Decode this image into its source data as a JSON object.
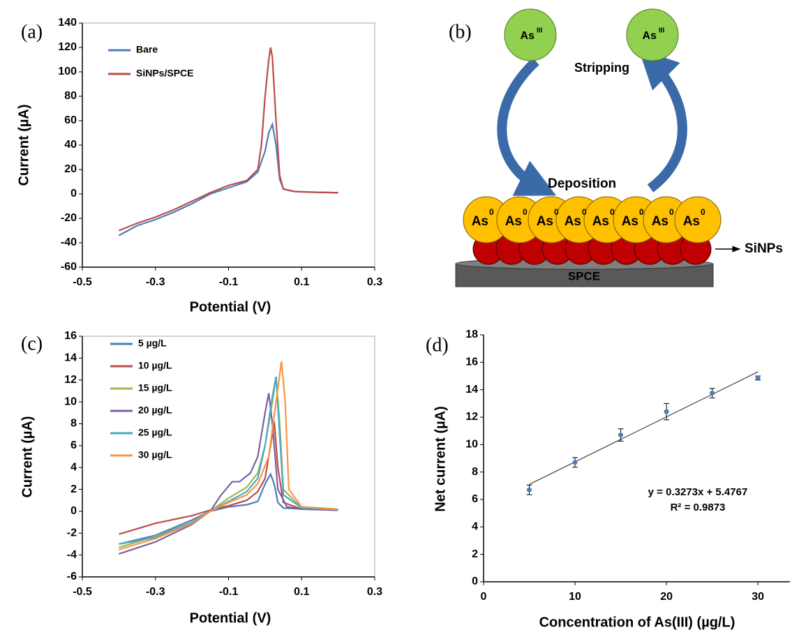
{
  "chart_data": [
    {
      "type": "line",
      "label": "(a)",
      "x_label": "Potential (V)",
      "y_label": "Current (µA)",
      "xlim": [
        -0.5,
        0.3
      ],
      "xticks": [
        -0.5,
        -0.3,
        -0.1,
        0.1,
        0.3
      ],
      "ylim": [
        -60,
        140
      ],
      "yticks": [
        -60,
        -40,
        -20,
        0,
        20,
        40,
        60,
        80,
        100,
        120,
        140
      ],
      "border": true,
      "series": [
        {
          "name": "Bare",
          "color": "#4a7ebb",
          "x": [
            -0.4,
            -0.35,
            -0.3,
            -0.25,
            -0.2,
            -0.15,
            -0.1,
            -0.05,
            -0.02,
            0,
            0.01,
            0.02,
            0.03,
            0.04,
            0.05,
            0.08,
            0.12,
            0.2
          ],
          "values": [
            -34,
            -26,
            -21,
            -15,
            -8,
            0,
            5,
            10,
            18,
            35,
            50,
            57,
            40,
            12,
            4,
            2,
            1.5,
            1
          ]
        },
        {
          "name": "SiNPs/SPCE",
          "color": "#be4b48",
          "x": [
            -0.4,
            -0.35,
            -0.3,
            -0.25,
            -0.2,
            -0.15,
            -0.1,
            -0.05,
            -0.02,
            -0.01,
            0,
            0.01,
            0.015,
            0.02,
            0.03,
            0.04,
            0.05,
            0.08,
            0.12,
            0.2
          ],
          "values": [
            -30,
            -24,
            -19,
            -13,
            -6,
            1,
            7,
            11,
            20,
            40,
            80,
            110,
            120,
            112,
            60,
            15,
            4,
            2,
            1.5,
            1
          ]
        }
      ]
    },
    {
      "type": "line",
      "label": "(c)",
      "x_label": "Potential (V)",
      "y_label": "Current (µA)",
      "xlim": [
        -0.5,
        0.3
      ],
      "xticks": [
        -0.5,
        -0.3,
        -0.1,
        0.1,
        0.3
      ],
      "ylim": [
        -6,
        16
      ],
      "yticks": [
        -6,
        -4,
        -2,
        0,
        2,
        4,
        6,
        8,
        10,
        12,
        14,
        16
      ],
      "border": true,
      "series": [
        {
          "name": "5 µg/L",
          "color": "#4a7ebb",
          "x": [
            -0.4,
            -0.3,
            -0.2,
            -0.15,
            -0.1,
            -0.05,
            -0.02,
            0,
            0.015,
            0.025,
            0.035,
            0.05,
            0.1,
            0.2
          ],
          "values": [
            -3,
            -2.2,
            -0.8,
            0,
            0.4,
            0.6,
            0.9,
            2.5,
            3.4,
            2.5,
            0.8,
            0.3,
            0.2,
            0.1
          ]
        },
        {
          "name": "10 µg/L",
          "color": "#be4b48",
          "x": [
            -0.4,
            -0.3,
            -0.2,
            -0.15,
            -0.1,
            -0.05,
            -0.02,
            0,
            0.015,
            0.025,
            0.035,
            0.05,
            0.1,
            0.2
          ],
          "values": [
            -2.1,
            -1.1,
            -0.4,
            0.1,
            0.5,
            1,
            1.8,
            3,
            6,
            8.2,
            4,
            0.8,
            0.2,
            0.15
          ]
        },
        {
          "name": "15 µg/L",
          "color": "#98b954",
          "x": [
            -0.4,
            -0.3,
            -0.2,
            -0.15,
            -0.1,
            -0.05,
            -0.02,
            0,
            0.02,
            0.03,
            0.04,
            0.05,
            0.1,
            0.2
          ],
          "values": [
            -3.3,
            -2.3,
            -1,
            0,
            1.2,
            2.2,
            3.5,
            6,
            10,
            12.3,
            8,
            2,
            0.3,
            0.15
          ]
        },
        {
          "name": "20 µg/L",
          "color": "#7d60a0",
          "x": [
            -0.4,
            -0.3,
            -0.2,
            -0.15,
            -0.12,
            -0.09,
            -0.07,
            -0.04,
            -0.02,
            0,
            0.01,
            0.02,
            0.035,
            0.06,
            0.1,
            0.2
          ],
          "values": [
            -3.9,
            -2.8,
            -1.2,
            0,
            1.5,
            2.7,
            2.7,
            3.5,
            5,
            9,
            10.8,
            8,
            2,
            0.4,
            0.2,
            0.1
          ]
        },
        {
          "name": "25 µg/L",
          "color": "#46aac5",
          "x": [
            -0.4,
            -0.3,
            -0.2,
            -0.15,
            -0.1,
            -0.05,
            -0.02,
            0,
            0.02,
            0.03,
            0.04,
            0.05,
            0.1,
            0.2
          ],
          "values": [
            -3,
            -2.4,
            -1,
            0,
            0.9,
            1.8,
            3,
            6,
            10.5,
            12.3,
            7,
            1.5,
            0.3,
            0.15
          ]
        },
        {
          "name": "30 µg/L",
          "color": "#f79646",
          "x": [
            -0.4,
            -0.3,
            -0.2,
            -0.15,
            -0.1,
            -0.05,
            -0.02,
            0.01,
            0.03,
            0.045,
            0.055,
            0.065,
            0.1,
            0.2
          ],
          "values": [
            -3.5,
            -2.5,
            -1.1,
            0,
            0.8,
            1.5,
            2.5,
            5,
            10,
            13.7,
            10,
            2,
            0.4,
            0.2
          ]
        }
      ]
    },
    {
      "type": "scatter",
      "label": "(d)",
      "x_label": "Concentration of As(III) (µg/L)",
      "y_label": "Net current (µA)",
      "xlim": [
        0,
        33.5
      ],
      "xticks": [
        0,
        10,
        20,
        30
      ],
      "ylim": [
        0,
        18
      ],
      "yticks": [
        0,
        2,
        4,
        6,
        8,
        10,
        12,
        14,
        16,
        18
      ],
      "border": false,
      "series": [
        {
          "color": "#4a7ebb",
          "x": [
            5,
            10,
            15,
            20,
            25,
            30
          ],
          "values": [
            6.7,
            8.7,
            10.7,
            12.4,
            13.75,
            14.85
          ],
          "errors": [
            0.35,
            0.35,
            0.45,
            0.6,
            0.35,
            0.15
          ]
        }
      ],
      "trend": {
        "color": "#404040",
        "x": [
          5,
          30
        ],
        "values": [
          7.1,
          15.3
        ]
      },
      "annotations": [
        "y = 0.3273x + 5.4767",
        "R² = 0.9873"
      ]
    }
  ],
  "diagram": {
    "label": "(b)",
    "ions": [
      {
        "symbol": "As",
        "charge": "III"
      },
      {
        "symbol": "As",
        "charge": "III"
      }
    ],
    "stripping": "Stripping",
    "deposition": "Deposition",
    "atoms": [
      {
        "symbol": "As",
        "charge": "0"
      },
      {
        "symbol": "As",
        "charge": "0"
      },
      {
        "symbol": "As",
        "charge": "0"
      },
      {
        "symbol": "As",
        "charge": "0"
      },
      {
        "symbol": "As",
        "charge": "0"
      },
      {
        "symbol": "As",
        "charge": "0"
      },
      {
        "symbol": "As",
        "charge": "0"
      },
      {
        "symbol": "As",
        "charge": "0"
      }
    ],
    "layer": "SiNPs",
    "electrode": "SPCE"
  }
}
